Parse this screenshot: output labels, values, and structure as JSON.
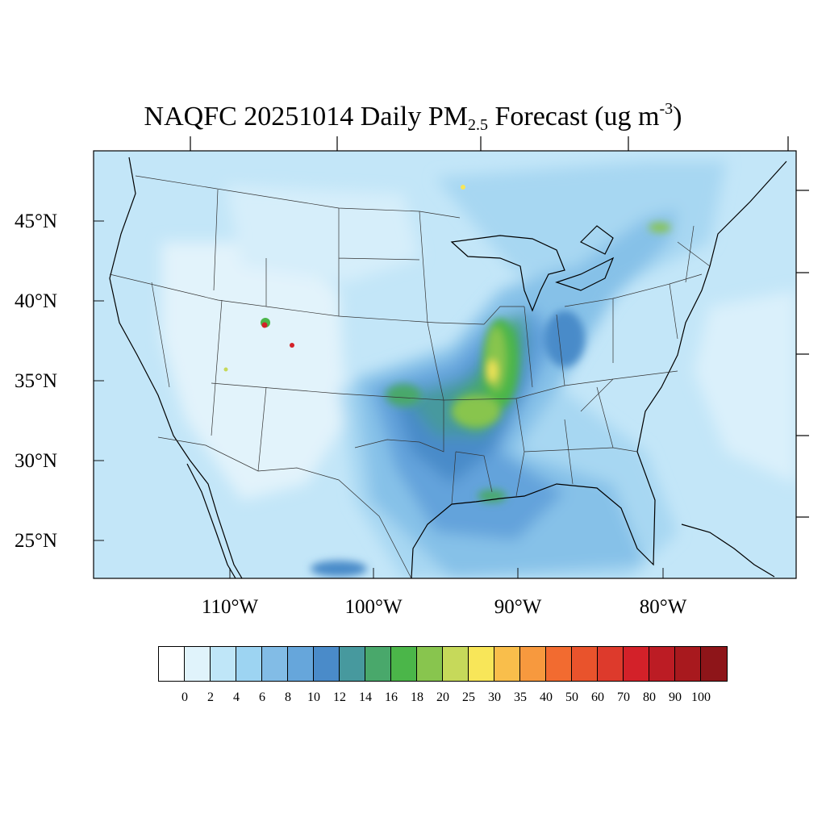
{
  "title": {
    "main": "NAQFC 20251014 Daily PM",
    "subscript": "2.5",
    "middle": " Forecast (ug m",
    "superscript": "-3",
    "end": ")"
  },
  "lat_labels": [
    "45°N",
    "40°N",
    "35°N",
    "30°N",
    "25°N"
  ],
  "lon_labels": [
    "110°W",
    "100°W",
    "90°W",
    "80°W"
  ],
  "colorbar": {
    "colors": [
      "#ffffff",
      "#e0f3fb",
      "#bfe6f8",
      "#9dd4f2",
      "#82bce6",
      "#66a6db",
      "#4a8bc9",
      "#47999e",
      "#49a86b",
      "#4bb649",
      "#88c54e",
      "#c6d95a",
      "#f8e659",
      "#f9be4b",
      "#f7993e",
      "#f26b30",
      "#e9532c",
      "#dd3a2c",
      "#d32129",
      "#bc1c24",
      "#a8191e",
      "#8e1519"
    ],
    "labels": [
      "0",
      "2",
      "4",
      "6",
      "8",
      "10",
      "12",
      "14",
      "16",
      "18",
      "20",
      "25",
      "30",
      "35",
      "40",
      "50",
      "60",
      "70",
      "80",
      "90",
      "100"
    ]
  },
  "field_colors": {
    "background": "#c3e6f8",
    "very_light": "#e2f3fb",
    "light": "#a7d7f2",
    "mid": "#86c1e8",
    "blue": "#63a3db",
    "deep_blue": "#4a8bc9",
    "teal": "#47999e",
    "green": "#49a86b",
    "bright_green": "#4bb649",
    "yellow_green": "#88c54e",
    "yellow": "#f8e659",
    "red": "#d32129"
  }
}
